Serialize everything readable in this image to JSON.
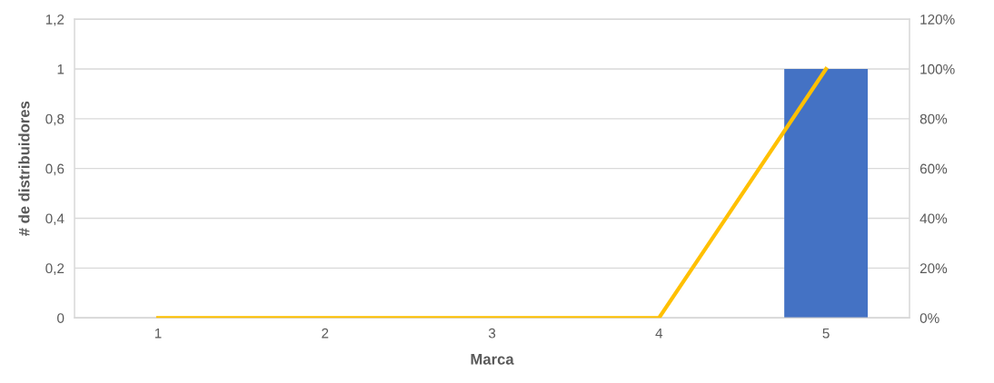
{
  "chart_data": {
    "type": "bar",
    "xlabel": "Marca",
    "ylabel": "# de distribuidores",
    "categories": [
      "1",
      "2",
      "3",
      "4",
      "5"
    ],
    "series": [
      {
        "color": "#4472c4",
        "values": [
          0,
          0,
          0,
          0,
          1
        ]
      },
      {
        "type": "line",
        "axis": "y2",
        "color": "#ffc000",
        "values": [
          0,
          0,
          0,
          0,
          100
        ]
      }
    ],
    "ylim": [
      0,
      1.2
    ],
    "yticks": [
      0,
      {
        "value": 0.2,
        "label": "0,2"
      },
      {
        "value": 0.4,
        "label": "0,4"
      },
      {
        "value": 0.6,
        "label": "0,6"
      },
      {
        "value": 0.8,
        "label": "0,8"
      },
      1,
      {
        "value": 1.2,
        "label": "1,2"
      }
    ],
    "y2lim": [
      0,
      120
    ],
    "y2ticks": [
      {
        "value": 0,
        "label": "0%"
      },
      {
        "value": 20,
        "label": "20%"
      },
      {
        "value": 40,
        "label": "40%"
      },
      {
        "value": 60,
        "label": "60%"
      },
      {
        "value": 80,
        "label": "80%"
      },
      {
        "value": 100,
        "label": "100%"
      },
      {
        "value": 120,
        "label": "120%"
      }
    ],
    "grid": "y",
    "marker": "none",
    "line_style": "solid"
  }
}
